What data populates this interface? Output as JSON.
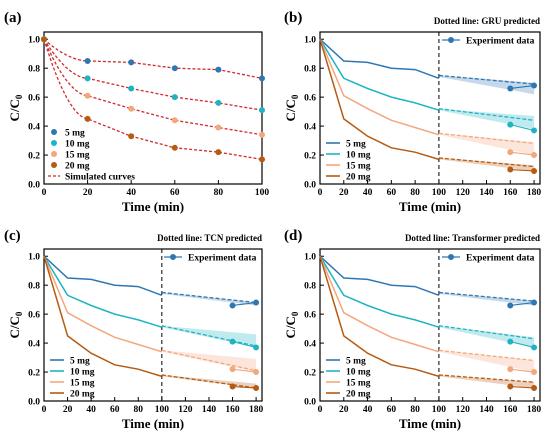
{
  "colors": {
    "5 mg": "#2e77b3",
    "10 mg": "#1fb4c4",
    "15 mg": "#f4a77c",
    "20 mg": "#b65b12",
    "simulated": "#d22b2b"
  },
  "chart_data": [
    {
      "panel": "(a)",
      "type": "scatter",
      "note": "",
      "xlabel": "Time (min)",
      "ylabel": "C/C0",
      "xlim": [
        0,
        100
      ],
      "ylim": [
        0,
        1.05
      ],
      "xticks": [
        0,
        20,
        40,
        60,
        80,
        100
      ],
      "yticks": [
        0.0,
        0.2,
        0.4,
        0.6,
        0.8,
        1.0
      ],
      "legend": [
        "5 mg",
        "10 mg",
        "15 mg",
        "20 mg",
        "Simulated curves"
      ],
      "series": [
        {
          "name": "5 mg",
          "x": [
            0,
            20,
            40,
            60,
            80,
            100
          ],
          "y": [
            1.0,
            0.85,
            0.84,
            0.8,
            0.79,
            0.73
          ]
        },
        {
          "name": "10 mg",
          "x": [
            0,
            20,
            40,
            60,
            80,
            100
          ],
          "y": [
            1.0,
            0.73,
            0.66,
            0.6,
            0.56,
            0.51
          ]
        },
        {
          "name": "15 mg",
          "x": [
            0,
            20,
            40,
            60,
            80,
            100
          ],
          "y": [
            1.0,
            0.61,
            0.52,
            0.44,
            0.39,
            0.34
          ]
        },
        {
          "name": "20 mg",
          "x": [
            0,
            20,
            40,
            60,
            80,
            100
          ],
          "y": [
            1.0,
            0.45,
            0.33,
            0.25,
            0.22,
            0.17
          ]
        }
      ]
    },
    {
      "panel": "(b)",
      "type": "line",
      "note": "Dotted line: GRU predicted",
      "xlabel": "Time (min)",
      "ylabel": "C/C0",
      "xlim": [
        0,
        185
      ],
      "ylim": [
        0,
        1.05
      ],
      "xticks": [
        0,
        20,
        40,
        60,
        80,
        100,
        120,
        140,
        160,
        180
      ],
      "yticks": [
        0.0,
        0.2,
        0.4,
        0.6,
        0.8,
        1.0
      ],
      "legend": [
        "5 mg",
        "10 mg",
        "15 mg",
        "20 mg"
      ],
      "experiment_label": "Experiment data",
      "vline": 100,
      "series": [
        {
          "name": "5 mg",
          "x": [
            0,
            20,
            40,
            60,
            80,
            100
          ],
          "y": [
            1.0,
            0.85,
            0.84,
            0.8,
            0.79,
            0.73
          ],
          "pred": [
            [
              100,
              0.75
            ],
            [
              180,
              0.69
            ]
          ],
          "band": [
            [
              100,
              0.74,
              0.75
            ],
            [
              180,
              0.62,
              0.7
            ]
          ],
          "exp": [
            [
              160,
              0.66
            ],
            [
              180,
              0.68
            ]
          ]
        },
        {
          "name": "10 mg",
          "x": [
            0,
            20,
            40,
            60,
            80,
            100
          ],
          "y": [
            1.0,
            0.73,
            0.66,
            0.6,
            0.56,
            0.51
          ],
          "pred": [
            [
              100,
              0.52
            ],
            [
              180,
              0.44
            ]
          ],
          "band": [
            [
              100,
              0.51,
              0.52
            ],
            [
              180,
              0.38,
              0.47
            ]
          ],
          "exp": [
            [
              160,
              0.41
            ],
            [
              180,
              0.37
            ]
          ]
        },
        {
          "name": "15 mg",
          "x": [
            0,
            20,
            40,
            60,
            80,
            100
          ],
          "y": [
            1.0,
            0.61,
            0.52,
            0.44,
            0.39,
            0.34
          ],
          "pred": [
            [
              100,
              0.35
            ],
            [
              180,
              0.28
            ]
          ],
          "band": [
            [
              100,
              0.34,
              0.35
            ],
            [
              180,
              0.2,
              0.29
            ]
          ],
          "exp": [
            [
              160,
              0.22
            ],
            [
              180,
              0.2
            ]
          ]
        },
        {
          "name": "20 mg",
          "x": [
            0,
            20,
            40,
            60,
            80,
            100
          ],
          "y": [
            1.0,
            0.45,
            0.33,
            0.25,
            0.22,
            0.17
          ],
          "pred": [
            [
              100,
              0.18
            ],
            [
              180,
              0.12
            ]
          ],
          "band": [
            [
              100,
              0.17,
              0.18
            ],
            [
              180,
              0.09,
              0.13
            ]
          ],
          "exp": [
            [
              160,
              0.1
            ],
            [
              180,
              0.09
            ]
          ]
        }
      ]
    },
    {
      "panel": "(c)",
      "type": "line",
      "note": "Dotted line: TCN predicted",
      "xlabel": "Time (min)",
      "ylabel": "C/C0",
      "xlim": [
        0,
        185
      ],
      "ylim": [
        0,
        1.05
      ],
      "xticks": [
        0,
        20,
        40,
        60,
        80,
        100,
        120,
        140,
        160,
        180
      ],
      "yticks": [
        0.0,
        0.2,
        0.4,
        0.6,
        0.8,
        1.0
      ],
      "legend": [
        "5 mg",
        "10 mg",
        "15 mg",
        "20 mg"
      ],
      "experiment_label": "Experiment data",
      "vline": 100,
      "series": [
        {
          "name": "5 mg",
          "x": [
            0,
            20,
            40,
            60,
            80,
            100
          ],
          "y": [
            1.0,
            0.85,
            0.84,
            0.8,
            0.79,
            0.73
          ],
          "pred": [
            [
              100,
              0.75
            ],
            [
              180,
              0.68
            ]
          ],
          "band": [
            [
              100,
              0.74,
              0.75
            ],
            [
              180,
              0.66,
              0.68
            ]
          ],
          "exp": [
            [
              160,
              0.66
            ],
            [
              180,
              0.68
            ]
          ]
        },
        {
          "name": "10 mg",
          "x": [
            0,
            20,
            40,
            60,
            80,
            100
          ],
          "y": [
            1.0,
            0.73,
            0.66,
            0.6,
            0.56,
            0.51
          ],
          "pred": [
            [
              100,
              0.52
            ],
            [
              180,
              0.38
            ]
          ],
          "band": [
            [
              100,
              0.51,
              0.52
            ],
            [
              180,
              0.37,
              0.46
            ]
          ],
          "exp": [
            [
              160,
              0.41
            ],
            [
              180,
              0.37
            ]
          ]
        },
        {
          "name": "15 mg",
          "x": [
            0,
            20,
            40,
            60,
            80,
            100
          ],
          "y": [
            1.0,
            0.61,
            0.52,
            0.44,
            0.39,
            0.34
          ],
          "pred": [
            [
              100,
              0.35
            ],
            [
              180,
              0.21
            ]
          ],
          "band": [
            [
              100,
              0.34,
              0.35
            ],
            [
              180,
              0.2,
              0.29
            ]
          ],
          "exp": [
            [
              160,
              0.22
            ],
            [
              180,
              0.2
            ]
          ]
        },
        {
          "name": "20 mg",
          "x": [
            0,
            20,
            40,
            60,
            80,
            100
          ],
          "y": [
            1.0,
            0.45,
            0.33,
            0.25,
            0.22,
            0.17
          ],
          "pred": [
            [
              100,
              0.18
            ],
            [
              180,
              0.09
            ]
          ],
          "band": [
            [
              100,
              0.17,
              0.18
            ],
            [
              180,
              0.09,
              0.12
            ]
          ],
          "exp": [
            [
              160,
              0.1
            ],
            [
              180,
              0.09
            ]
          ]
        }
      ]
    },
    {
      "panel": "(d)",
      "type": "line",
      "note": "Dotted line: Transformer predicted",
      "xlabel": "Time (min)",
      "ylabel": "C/C0",
      "xlim": [
        0,
        185
      ],
      "ylim": [
        0,
        1.05
      ],
      "xticks": [
        0,
        20,
        40,
        60,
        80,
        100,
        120,
        140,
        160,
        180
      ],
      "yticks": [
        0.0,
        0.2,
        0.4,
        0.6,
        0.8,
        1.0
      ],
      "legend": [
        "5 mg",
        "10 mg",
        "15 mg",
        "20 mg"
      ],
      "experiment_label": "Experiment data",
      "vline": 100,
      "series": [
        {
          "name": "5 mg",
          "x": [
            0,
            20,
            40,
            60,
            80,
            100
          ],
          "y": [
            1.0,
            0.85,
            0.84,
            0.8,
            0.79,
            0.73
          ],
          "pred": [
            [
              100,
              0.75
            ],
            [
              180,
              0.69
            ]
          ],
          "band": [
            [
              100,
              0.74,
              0.75
            ],
            [
              180,
              0.66,
              0.69
            ]
          ],
          "exp": [
            [
              160,
              0.66
            ],
            [
              180,
              0.68
            ]
          ]
        },
        {
          "name": "10 mg",
          "x": [
            0,
            20,
            40,
            60,
            80,
            100
          ],
          "y": [
            1.0,
            0.73,
            0.66,
            0.6,
            0.56,
            0.51
          ],
          "pred": [
            [
              100,
              0.52
            ],
            [
              180,
              0.43
            ]
          ],
          "band": [
            [
              100,
              0.51,
              0.52
            ],
            [
              180,
              0.37,
              0.44
            ]
          ],
          "exp": [
            [
              160,
              0.41
            ],
            [
              180,
              0.37
            ]
          ]
        },
        {
          "name": "15 mg",
          "x": [
            0,
            20,
            40,
            60,
            80,
            100
          ],
          "y": [
            1.0,
            0.61,
            0.52,
            0.44,
            0.39,
            0.34
          ],
          "pred": [
            [
              100,
              0.35
            ],
            [
              180,
              0.28
            ]
          ],
          "band": [
            [
              100,
              0.34,
              0.35
            ],
            [
              180,
              0.2,
              0.28
            ]
          ],
          "exp": [
            [
              160,
              0.22
            ],
            [
              180,
              0.2
            ]
          ]
        },
        {
          "name": "20 mg",
          "x": [
            0,
            20,
            40,
            60,
            80,
            100
          ],
          "y": [
            1.0,
            0.45,
            0.33,
            0.25,
            0.22,
            0.17
          ],
          "pred": [
            [
              100,
              0.18
            ],
            [
              180,
              0.13
            ]
          ],
          "band": [
            [
              100,
              0.17,
              0.18
            ],
            [
              180,
              0.09,
              0.13
            ]
          ],
          "exp": [
            [
              160,
              0.1
            ],
            [
              180,
              0.09
            ]
          ]
        }
      ]
    }
  ]
}
